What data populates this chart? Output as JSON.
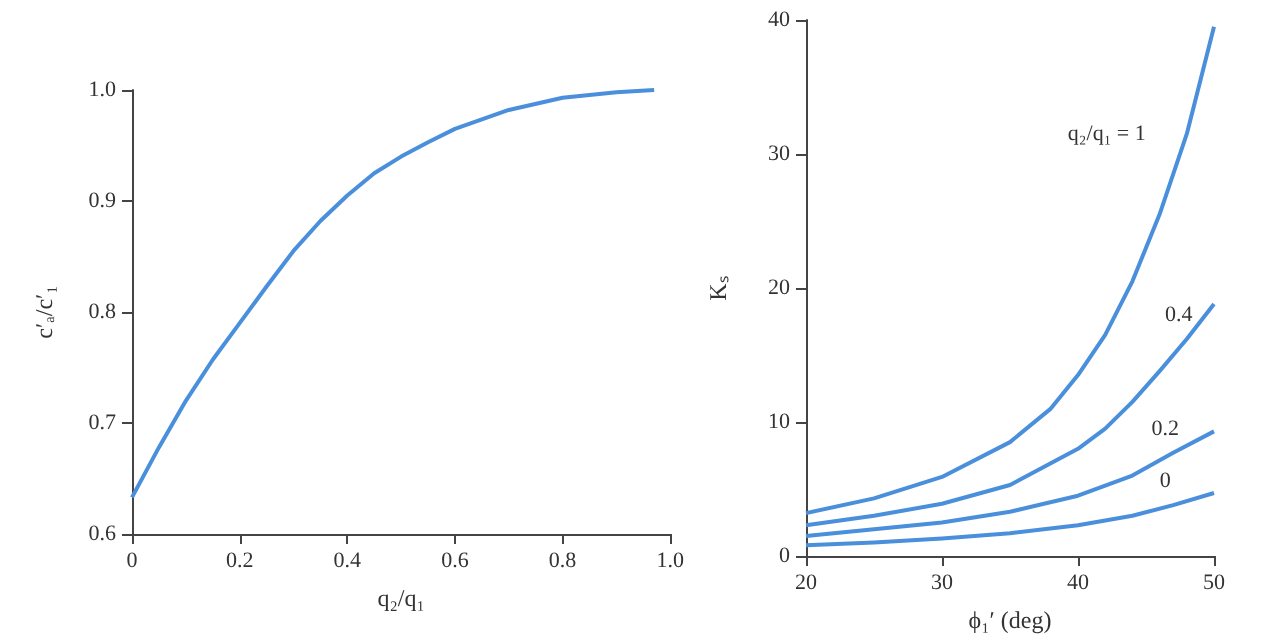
{
  "chart_data": [
    {
      "type": "line",
      "xlabel": "q₂/q₁",
      "ylabel": "c′ₐ/c′₁",
      "x": [
        0,
        0.05,
        0.1,
        0.15,
        0.2,
        0.25,
        0.3,
        0.35,
        0.4,
        0.45,
        0.5,
        0.55,
        0.6,
        0.7,
        0.8,
        0.9,
        0.97
      ],
      "series": [
        {
          "color": "#4a8fdb",
          "values": [
            0.633,
            0.678,
            0.72,
            0.757,
            0.79,
            0.823,
            0.855,
            0.882,
            0.905,
            0.925,
            0.94,
            0.953,
            0.965,
            0.982,
            0.993,
            0.998,
            1.0
          ]
        }
      ],
      "xlim": [
        0,
        1
      ],
      "xticks": [
        0,
        0.2,
        0.4,
        0.6,
        0.8,
        {
          "value": 1,
          "label": "1.0"
        }
      ],
      "ylim": [
        0.6,
        1
      ],
      "yticks": [
        0.6,
        0.7,
        0.8,
        0.9,
        {
          "value": 1,
          "label": "1.0"
        }
      ]
    },
    {
      "type": "line",
      "xlabel": "ϕ₁′ (deg)",
      "ylabel": "Kₛ",
      "series": [
        {
          "name": "q₂/q₁ = 1",
          "color": "#4a8fdb",
          "x": [
            20,
            25,
            30,
            35,
            38,
            40,
            42,
            44,
            46,
            48,
            50
          ],
          "values": [
            3.2,
            4.3,
            5.9,
            8.5,
            11,
            13.5,
            16.5,
            20.5,
            25.5,
            31.5,
            39.5
          ]
        },
        {
          "name": "0.4",
          "color": "#4a8fdb",
          "x": [
            20,
            25,
            30,
            35,
            40,
            42,
            44,
            46,
            48,
            50
          ],
          "values": [
            2.3,
            3,
            3.9,
            5.3,
            8,
            9.5,
            11.5,
            13.8,
            16.2,
            18.8
          ]
        },
        {
          "name": "0.2",
          "color": "#4a8fdb",
          "x": [
            20,
            25,
            30,
            35,
            40,
            44,
            47,
            50
          ],
          "values": [
            1.5,
            2,
            2.5,
            3.3,
            4.5,
            6,
            7.7,
            9.3
          ]
        },
        {
          "name": "0",
          "color": "#4a8fdb",
          "x": [
            20,
            25,
            30,
            35,
            40,
            44,
            47,
            50
          ],
          "values": [
            0.8,
            1,
            1.3,
            1.7,
            2.3,
            3,
            3.8,
            4.7
          ]
        }
      ],
      "xlim": [
        20,
        50
      ],
      "xticks": [
        20,
        30,
        40,
        50
      ],
      "ylim": [
        0,
        40
      ],
      "yticks": [
        0,
        10,
        20,
        30,
        40
      ]
    }
  ]
}
